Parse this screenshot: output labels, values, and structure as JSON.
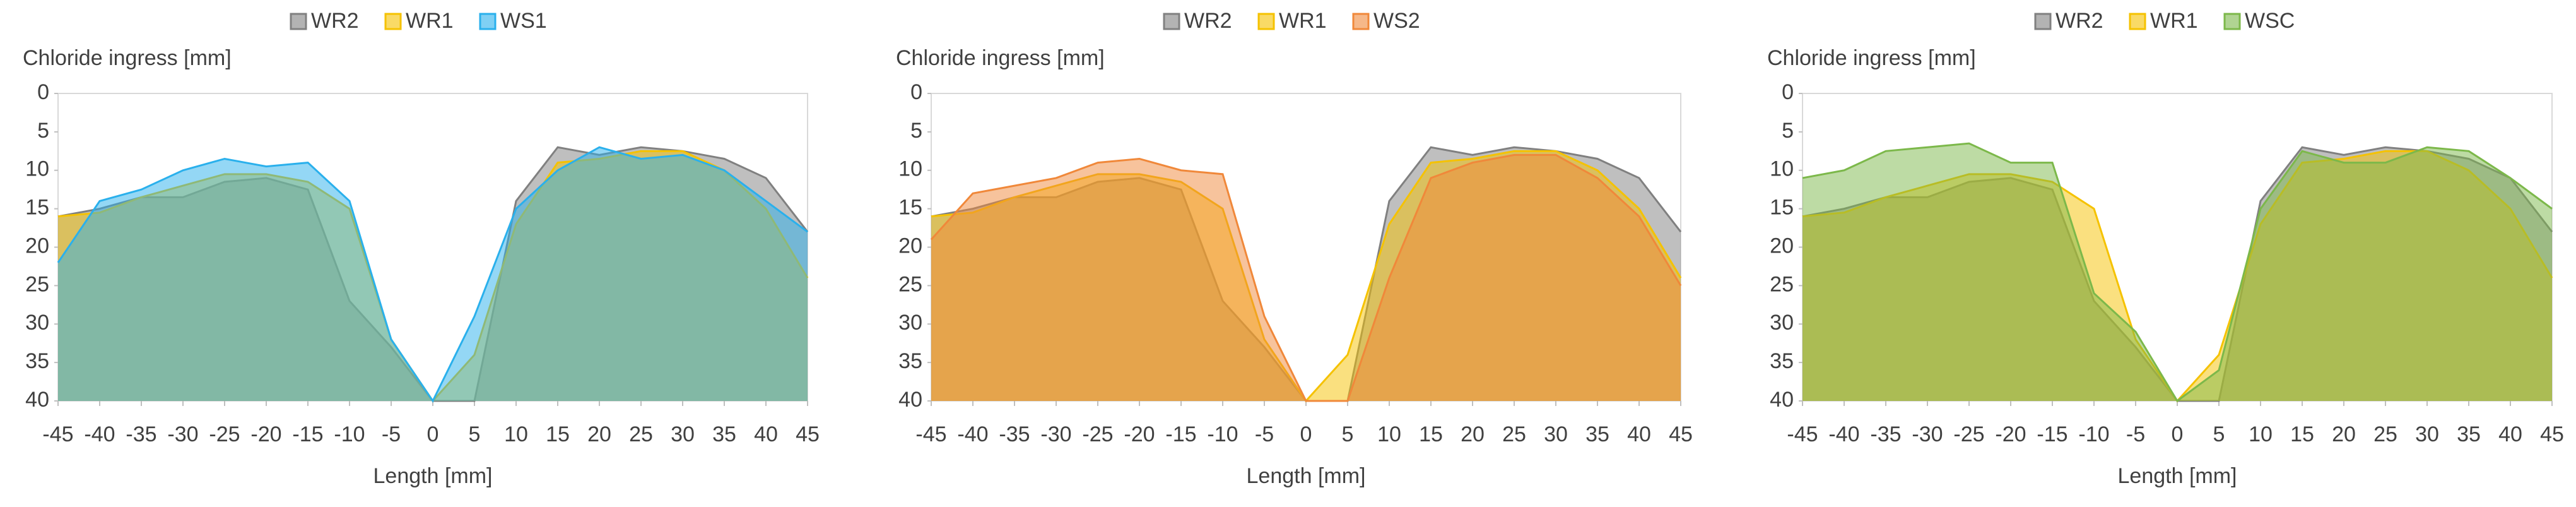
{
  "chart_data": [
    {
      "type": "area",
      "y_label": "Chloride ingress [mm]",
      "x_label": "Length [mm]",
      "x": [
        -45,
        -40,
        -35,
        -30,
        -25,
        -20,
        -15,
        -10,
        -5,
        0,
        5,
        10,
        15,
        20,
        25,
        30,
        35,
        40,
        45
      ],
      "xlim": [
        -45,
        45
      ],
      "xticks": [
        -45,
        -40,
        -35,
        -30,
        -25,
        -20,
        -15,
        -10,
        -5,
        0,
        5,
        10,
        15,
        20,
        25,
        30,
        35,
        40,
        45
      ],
      "ylim": [
        0,
        40
      ],
      "yticks": [
        0,
        5,
        10,
        15,
        20,
        25,
        30,
        35,
        40
      ],
      "y_inverted": true,
      "series": [
        {
          "name": "WR2",
          "color": "#808080",
          "values": [
            16,
            15,
            13.5,
            13.5,
            11.5,
            11,
            12.5,
            27,
            33,
            40,
            40,
            14,
            7,
            8,
            7,
            7.5,
            8.5,
            11,
            18
          ]
        },
        {
          "name": "WR1",
          "color": "#f5c200",
          "values": [
            16,
            15.5,
            13.5,
            12,
            10.5,
            10.5,
            11.5,
            15,
            32,
            40,
            34,
            17,
            9,
            8.5,
            7.5,
            7.5,
            10,
            15,
            24
          ]
        },
        {
          "name": "WS1",
          "color": "#2ab0ec",
          "values": [
            22,
            14,
            12.5,
            10,
            8.5,
            9.5,
            9,
            14,
            32,
            40,
            29,
            15,
            10,
            7,
            8.5,
            8,
            10,
            14,
            18
          ]
        }
      ]
    },
    {
      "type": "area",
      "y_label": "Chloride ingress [mm]",
      "x_label": "Length [mm]",
      "x": [
        -45,
        -40,
        -35,
        -30,
        -25,
        -20,
        -15,
        -10,
        -5,
        0,
        5,
        10,
        15,
        20,
        25,
        30,
        35,
        40,
        45
      ],
      "xlim": [
        -45,
        45
      ],
      "xticks": [
        -45,
        -40,
        -35,
        -30,
        -25,
        -20,
        -15,
        -10,
        -5,
        0,
        5,
        10,
        15,
        20,
        25,
        30,
        35,
        40,
        45
      ],
      "ylim": [
        0,
        40
      ],
      "yticks": [
        0,
        5,
        10,
        15,
        20,
        25,
        30,
        35,
        40
      ],
      "y_inverted": true,
      "series": [
        {
          "name": "WR2",
          "color": "#808080",
          "values": [
            16,
            15,
            13.5,
            13.5,
            11.5,
            11,
            12.5,
            27,
            33,
            40,
            40,
            14,
            7,
            8,
            7,
            7.5,
            8.5,
            11,
            18
          ]
        },
        {
          "name": "WR1",
          "color": "#f5c200",
          "values": [
            16,
            15.5,
            13.5,
            12,
            10.5,
            10.5,
            11.5,
            15,
            32,
            40,
            34,
            17,
            9,
            8.5,
            7.5,
            7.5,
            10,
            15,
            24
          ]
        },
        {
          "name": "WS2",
          "color": "#f0883a",
          "values": [
            19,
            13,
            12,
            11,
            9,
            8.5,
            10,
            10.5,
            29,
            40,
            40,
            24,
            11,
            9,
            8,
            8,
            11,
            16,
            25
          ]
        }
      ]
    },
    {
      "type": "area",
      "y_label": "Chloride ingress [mm]",
      "x_label": "Length [mm]",
      "x": [
        -45,
        -40,
        -35,
        -30,
        -25,
        -20,
        -15,
        -10,
        -5,
        0,
        5,
        10,
        15,
        20,
        25,
        30,
        35,
        40,
        45
      ],
      "xlim": [
        -45,
        45
      ],
      "xticks": [
        -45,
        -40,
        -35,
        -30,
        -25,
        -20,
        -15,
        -10,
        -5,
        0,
        5,
        10,
        15,
        20,
        25,
        30,
        35,
        40,
        45
      ],
      "ylim": [
        0,
        40
      ],
      "yticks": [
        0,
        5,
        10,
        15,
        20,
        25,
        30,
        35,
        40
      ],
      "y_inverted": true,
      "series": [
        {
          "name": "WR2",
          "color": "#808080",
          "values": [
            16,
            15,
            13.5,
            13.5,
            11.5,
            11,
            12.5,
            27,
            33,
            40,
            40,
            14,
            7,
            8,
            7,
            7.5,
            8.5,
            11,
            18
          ]
        },
        {
          "name": "WR1",
          "color": "#f5c200",
          "values": [
            16,
            15.5,
            13.5,
            12,
            10.5,
            10.5,
            11.5,
            15,
            32,
            40,
            34,
            17,
            9,
            8.5,
            7.5,
            7.5,
            10,
            15,
            24
          ]
        },
        {
          "name": "WSC",
          "color": "#7cb84a",
          "values": [
            11,
            10,
            7.5,
            7,
            6.5,
            9,
            9,
            26,
            31,
            40,
            36,
            15,
            7.5,
            9,
            9,
            7,
            7.5,
            11,
            15
          ]
        }
      ]
    }
  ]
}
